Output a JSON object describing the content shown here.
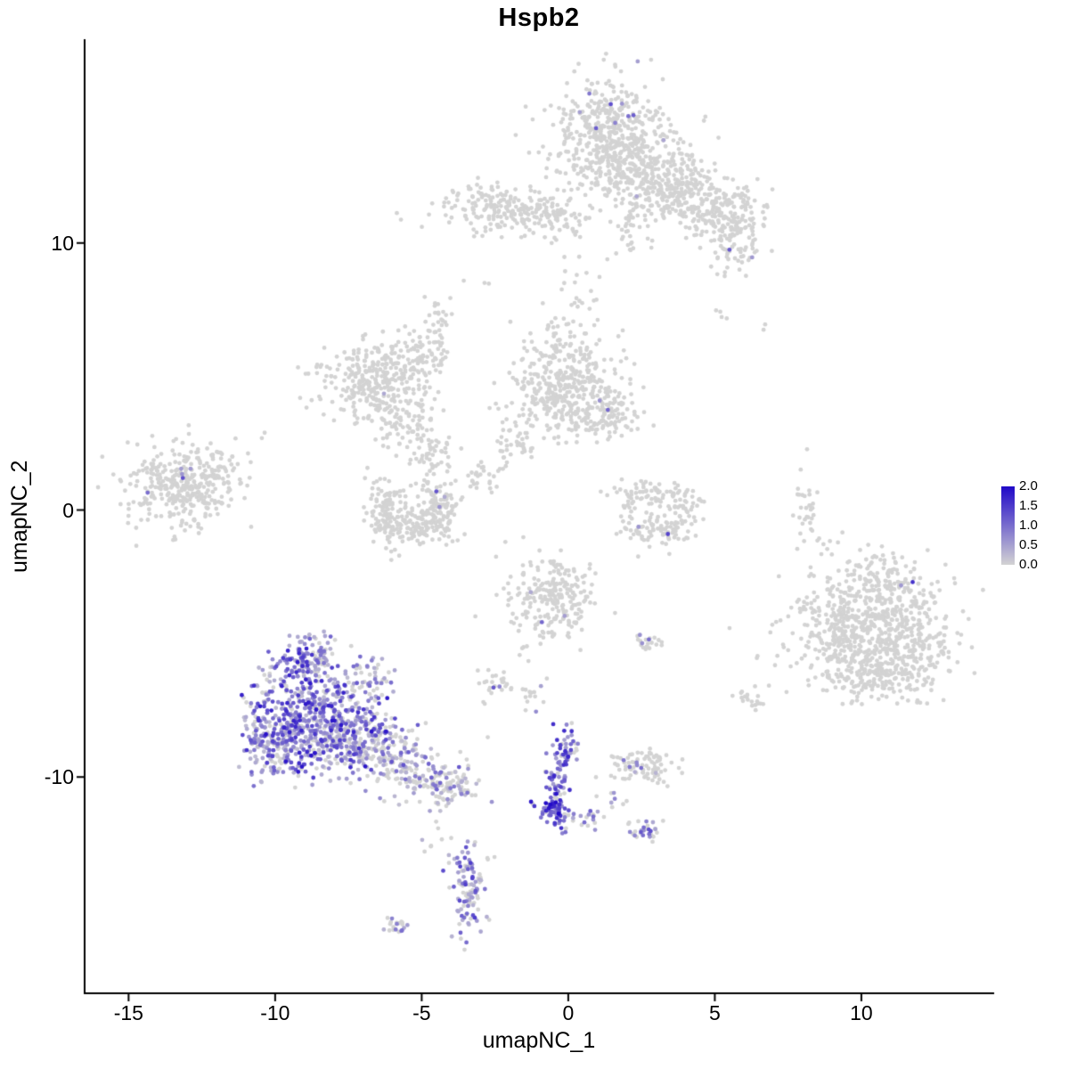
{
  "chart_data": {
    "type": "scatter",
    "title": "Hspb2",
    "xlabel": "umapNC_1",
    "ylabel": "umapNC_2",
    "xlim": [
      -16.5,
      14.5
    ],
    "ylim": [
      -18.1,
      17.6
    ],
    "x_ticks": [
      -15,
      -10,
      -5,
      0,
      5,
      10
    ],
    "y_ticks": [
      10,
      0,
      -10
    ],
    "grid": false,
    "point_radius_px": 2.4,
    "legend": {
      "position": "right",
      "tick_labels": [
        "2.0",
        "1.5",
        "1.0",
        "0.5",
        "0.0"
      ],
      "value_range": [
        0,
        2
      ],
      "color_low": "#d3d3d3",
      "color_high": "#2008c8"
    },
    "clusters": [
      {
        "name": "top-main",
        "cx": 1.4,
        "cy": 14.0,
        "sx": 0.95,
        "sy": 1.05,
        "n": 480,
        "f": 0.012,
        "lo": 0.5,
        "hi": 1.3
      },
      {
        "name": "top-main-se",
        "cx": 2.8,
        "cy": 12.6,
        "sx": 0.95,
        "sy": 0.75,
        "n": 260,
        "f": 0.004,
        "lo": 0.4,
        "hi": 0.9
      },
      {
        "name": "top-right-1",
        "cx": 4.0,
        "cy": 11.9,
        "sx": 0.75,
        "sy": 0.6,
        "n": 150,
        "f": 0.004,
        "lo": 0.4,
        "hi": 0.9
      },
      {
        "name": "top-far-right",
        "cx": 6.0,
        "cy": 11.5,
        "sx": 0.4,
        "sy": 0.45,
        "n": 40,
        "f": 0
      },
      {
        "name": "top-right-2",
        "cx": 5.0,
        "cy": 11.0,
        "sx": 0.6,
        "sy": 0.55,
        "n": 110,
        "f": 0
      },
      {
        "name": "top-right-tail",
        "cx": 5.8,
        "cy": 10.1,
        "sx": 0.45,
        "sy": 0.5,
        "n": 60,
        "f": 0.02,
        "lo": 0.4,
        "hi": 0.8
      },
      {
        "name": "top-right-trail",
        "cx": 5.2,
        "cy": 8.6,
        "sx": 0.25,
        "sy": 0.7,
        "n": 14,
        "f": 0
      },
      {
        "name": "top-below-strand",
        "cx": 2.1,
        "cy": 10.7,
        "sx": 0.35,
        "sy": 0.55,
        "n": 35,
        "f": 0
      },
      {
        "name": "top-left-band",
        "cx": -2.1,
        "cy": 11.3,
        "sx": 1.05,
        "sy": 0.45,
        "n": 210,
        "f": 0
      },
      {
        "name": "top-left-band-east",
        "cx": -0.4,
        "cy": 11.0,
        "sx": 0.5,
        "sy": 0.4,
        "n": 70,
        "f": 0
      },
      {
        "name": "top-sparse-below",
        "cx": 0.2,
        "cy": 8.8,
        "sx": 0.9,
        "sy": 0.6,
        "n": 14,
        "f": 0
      },
      {
        "name": "midleft-main",
        "cx": -6.7,
        "cy": 4.8,
        "sx": 0.95,
        "sy": 0.75,
        "n": 300,
        "f": 0.003,
        "lo": 0.4,
        "hi": 0.8
      },
      {
        "name": "midleft-ne",
        "cx": -5.1,
        "cy": 5.7,
        "sx": 0.5,
        "sy": 0.5,
        "n": 80,
        "f": 0
      },
      {
        "name": "midleft-strand",
        "cx": -4.45,
        "cy": 7.0,
        "sx": 0.18,
        "sy": 0.55,
        "n": 26,
        "f": 0
      },
      {
        "name": "midleft-low",
        "cx": -5.7,
        "cy": 3.3,
        "sx": 0.55,
        "sy": 0.45,
        "n": 80,
        "f": 0
      },
      {
        "name": "midleft-bridge",
        "cx": -4.7,
        "cy": 2.1,
        "sx": 0.4,
        "sy": 0.5,
        "n": 55,
        "f": 0
      },
      {
        "name": "ring-left",
        "cx": -6.3,
        "cy": 0.2,
        "sx": 0.3,
        "sy": 0.6,
        "n": 85,
        "f": 0
      },
      {
        "name": "ring-bottom",
        "cx": -5.3,
        "cy": -0.7,
        "sx": 0.65,
        "sy": 0.3,
        "n": 130,
        "f": 0.004,
        "lo": 0.4,
        "hi": 0.8
      },
      {
        "name": "ring-right",
        "cx": -4.3,
        "cy": 0.1,
        "sx": 0.3,
        "sy": 0.55,
        "n": 85,
        "f": 0.005,
        "lo": 0.4,
        "hi": 1.0
      },
      {
        "name": "ring-inner",
        "cx": -5.3,
        "cy": 0.4,
        "sx": 0.5,
        "sy": 0.4,
        "n": 30,
        "f": 0
      },
      {
        "name": "center-main",
        "cx": -0.1,
        "cy": 4.5,
        "sx": 0.95,
        "sy": 0.95,
        "n": 420,
        "f": 0.004,
        "lo": 0.4,
        "hi": 0.9
      },
      {
        "name": "center-east",
        "cx": 1.3,
        "cy": 3.6,
        "sx": 0.5,
        "sy": 0.5,
        "n": 90,
        "f": 0
      },
      {
        "name": "center-tail-1",
        "cx": -1.7,
        "cy": 2.4,
        "sx": 0.35,
        "sy": 0.3,
        "n": 28,
        "f": 0
      },
      {
        "name": "center-tail-2",
        "cx": -2.8,
        "cy": 1.3,
        "sx": 0.4,
        "sy": 0.35,
        "n": 30,
        "f": 0
      },
      {
        "name": "center-above",
        "cx": -0.4,
        "cy": 6.6,
        "sx": 0.55,
        "sy": 0.45,
        "n": 26,
        "f": 0
      },
      {
        "name": "center-above-2",
        "cx": 0.3,
        "cy": 7.9,
        "sx": 0.3,
        "sy": 0.3,
        "n": 8,
        "f": 0
      },
      {
        "name": "farleft-main",
        "cx": -13.3,
        "cy": 0.9,
        "sx": 0.95,
        "sy": 0.75,
        "n": 340,
        "f": 0.006,
        "lo": 0.5,
        "hi": 1.2
      },
      {
        "name": "farleft-edge",
        "cx": -11.9,
        "cy": 1.5,
        "sx": 0.35,
        "sy": 0.5,
        "n": 35,
        "f": 0
      },
      {
        "name": "misc-left-up",
        "cx": -10.6,
        "cy": 2.6,
        "sx": 0.3,
        "sy": 0.3,
        "n": 3,
        "f": 0
      },
      {
        "name": "hook-top",
        "cx": 2.7,
        "cy": 0.7,
        "sx": 0.55,
        "sy": 0.3,
        "n": 55,
        "f": 0
      },
      {
        "name": "hook-right",
        "cx": 3.9,
        "cy": -0.1,
        "sx": 0.3,
        "sy": 0.5,
        "n": 55,
        "f": 0
      },
      {
        "name": "hook-bottom",
        "cx": 3.0,
        "cy": -0.85,
        "sx": 0.55,
        "sy": 0.28,
        "n": 70,
        "f": 0.01,
        "lo": 0.5,
        "hi": 1.2
      },
      {
        "name": "hook-left-bits",
        "cx": 2.0,
        "cy": 0.2,
        "sx": 0.25,
        "sy": 0.4,
        "n": 18,
        "f": 0
      },
      {
        "name": "right-streak",
        "cx": 8.1,
        "cy": 0.2,
        "sx": 0.17,
        "sy": 0.75,
        "n": 28,
        "f": 0
      },
      {
        "name": "right-main-west",
        "cx": 9.5,
        "cy": -4.4,
        "sx": 1.0,
        "sy": 1.05,
        "n": 360,
        "f": 0.002,
        "lo": 0.3,
        "hi": 0.6
      },
      {
        "name": "right-main-east",
        "cx": 11.2,
        "cy": -4.9,
        "sx": 1.0,
        "sy": 1.0,
        "n": 360,
        "f": 0.002,
        "lo": 0.3,
        "hi": 0.6
      },
      {
        "name": "right-main-top",
        "cx": 10.9,
        "cy": -2.8,
        "sx": 0.85,
        "sy": 0.6,
        "n": 140,
        "f": 0.004,
        "lo": 0.4,
        "hi": 0.8
      },
      {
        "name": "right-main-south",
        "cx": 10.3,
        "cy": -6.3,
        "sx": 0.9,
        "sy": 0.5,
        "n": 120,
        "f": 0
      },
      {
        "name": "right-halo",
        "cx": 8.6,
        "cy": -1.2,
        "sx": 0.5,
        "sy": 0.4,
        "n": 12,
        "f": 0
      },
      {
        "name": "centerlow-main",
        "cx": -0.6,
        "cy": -3.3,
        "sx": 0.8,
        "sy": 0.85,
        "n": 240,
        "f": 0.008,
        "lo": 0.4,
        "hi": 1.0
      },
      {
        "name": "centerlow-blob",
        "cx": 2.7,
        "cy": -4.9,
        "sx": 0.28,
        "sy": 0.22,
        "n": 20,
        "f": 0.08,
        "lo": 0.6,
        "hi": 1.1
      },
      {
        "name": "sparse-mid-1",
        "cx": -2.5,
        "cy": -6.6,
        "sx": 0.3,
        "sy": 0.3,
        "n": 24,
        "f": 0.1,
        "lo": 0.5,
        "hi": 1.3
      },
      {
        "name": "sparse-mid-2",
        "cx": -1.2,
        "cy": -6.9,
        "sx": 0.3,
        "sy": 0.3,
        "n": 14,
        "f": 0.05,
        "lo": 0.4,
        "hi": 0.9
      },
      {
        "name": "sparse-right",
        "cx": 6.2,
        "cy": -7.1,
        "sx": 0.45,
        "sy": 0.3,
        "n": 20,
        "f": 0
      },
      {
        "name": "expr-core",
        "cx": -8.6,
        "cy": -7.9,
        "sx": 1.05,
        "sy": 1.0,
        "n": 560,
        "f": 0.85,
        "lo": 0.25,
        "hi": 1.9
      },
      {
        "name": "expr-top",
        "cx": -8.9,
        "cy": -5.7,
        "sx": 0.6,
        "sy": 0.5,
        "n": 130,
        "f": 0.8,
        "lo": 0.3,
        "hi": 1.8
      },
      {
        "name": "expr-left",
        "cx": -10.2,
        "cy": -8.7,
        "sx": 0.5,
        "sy": 0.7,
        "n": 150,
        "f": 0.7,
        "lo": 0.2,
        "hi": 1.5
      },
      {
        "name": "expr-right",
        "cx": -6.9,
        "cy": -8.7,
        "sx": 0.7,
        "sy": 0.6,
        "n": 180,
        "f": 0.55,
        "lo": 0.2,
        "hi": 1.4
      },
      {
        "name": "expr-tail-1",
        "cx": -5.4,
        "cy": -9.6,
        "sx": 0.7,
        "sy": 0.5,
        "n": 140,
        "f": 0.45,
        "lo": 0.2,
        "hi": 1.3
      },
      {
        "name": "expr-tail-2",
        "cx": -4.1,
        "cy": -10.3,
        "sx": 0.5,
        "sy": 0.4,
        "n": 90,
        "f": 0.35,
        "lo": 0.2,
        "hi": 1.2
      },
      {
        "name": "expr-ne",
        "cx": -6.8,
        "cy": -6.4,
        "sx": 0.5,
        "sy": 0.5,
        "n": 55,
        "f": 0.5,
        "lo": 0.2,
        "hi": 1.3
      },
      {
        "name": "vstreak-top",
        "cx": -0.1,
        "cy": -8.9,
        "sx": 0.2,
        "sy": 0.4,
        "n": 40,
        "f": 0.8,
        "lo": 0.5,
        "hi": 1.8
      },
      {
        "name": "vstreak-mid",
        "cx": -0.3,
        "cy": -10.0,
        "sx": 0.2,
        "sy": 0.5,
        "n": 45,
        "f": 0.75,
        "lo": 0.5,
        "hi": 1.7
      },
      {
        "name": "vstreak-bottom",
        "cx": -0.4,
        "cy": -11.2,
        "sx": 0.3,
        "sy": 0.38,
        "n": 75,
        "f": 0.9,
        "lo": 0.7,
        "hi": 2.0
      },
      {
        "name": "vstreak-side",
        "cx": 0.6,
        "cy": -11.6,
        "sx": 0.3,
        "sy": 0.25,
        "n": 16,
        "f": 0.5,
        "lo": 0.4,
        "hi": 1.2
      },
      {
        "name": "lowmid-band",
        "cx": 2.5,
        "cy": -9.6,
        "sx": 0.6,
        "sy": 0.3,
        "n": 90,
        "f": 0.12,
        "lo": 0.3,
        "hi": 1.1
      },
      {
        "name": "lowmid-below",
        "cx": 2.6,
        "cy": -11.9,
        "sx": 0.3,
        "sy": 0.25,
        "n": 30,
        "f": 0.4,
        "lo": 0.4,
        "hi": 1.3
      },
      {
        "name": "lowmid-bridge",
        "cx": 1.5,
        "cy": -10.9,
        "sx": 0.3,
        "sy": 0.3,
        "n": 8,
        "f": 0.2,
        "lo": 0.3,
        "hi": 0.8
      },
      {
        "name": "bottom-vertical",
        "cx": -3.45,
        "cy": -14.2,
        "sx": 0.3,
        "sy": 0.85,
        "n": 115,
        "f": 0.6,
        "lo": 0.3,
        "hi": 1.5
      },
      {
        "name": "bottom-tiny",
        "cx": -5.9,
        "cy": -15.6,
        "sx": 0.28,
        "sy": 0.2,
        "n": 20,
        "f": 0.3,
        "lo": 0.3,
        "hi": 1.0
      },
      {
        "name": "bottom-stray",
        "cx": -4.7,
        "cy": -12.6,
        "sx": 0.25,
        "sy": 0.3,
        "n": 6,
        "f": 0.2,
        "lo": 0.3,
        "hi": 0.8
      },
      {
        "name": "misc-left-mid",
        "cx": -6.1,
        "cy": -1.5,
        "sx": 0.3,
        "sy": 0.3,
        "n": 5,
        "f": 0
      },
      {
        "name": "misc-up-left",
        "cx": -2.9,
        "cy": 8.4,
        "sx": 0.25,
        "sy": 0.25,
        "n": 3,
        "f": 0
      },
      {
        "name": "misc-up-right",
        "cx": 6.6,
        "cy": 6.9,
        "sx": 0.15,
        "sy": 0.15,
        "n": 2,
        "f": 0
      }
    ],
    "highlight_points": [
      [
        1.45,
        15.2,
        1.3
      ],
      [
        2.05,
        14.75,
        1.0
      ],
      [
        0.95,
        14.3,
        1.15
      ],
      [
        1.6,
        14.5,
        0.8
      ],
      [
        5.5,
        9.75,
        1.2
      ],
      [
        1.35,
        3.75,
        1.05
      ],
      [
        -4.5,
        0.7,
        1.25
      ],
      [
        3.4,
        -0.9,
        1.4
      ],
      [
        -14.35,
        0.65,
        1.0
      ],
      [
        -13.15,
        1.2,
        1.3
      ],
      [
        11.75,
        -2.7,
        1.6
      ],
      [
        -0.9,
        -4.2,
        1.05
      ],
      [
        2.75,
        -4.85,
        1.0
      ],
      [
        -2.55,
        -6.65,
        1.2
      ],
      [
        -1.1,
        -7.55,
        0.7
      ],
      [
        0.55,
        -11.7,
        1.0
      ]
    ]
  }
}
